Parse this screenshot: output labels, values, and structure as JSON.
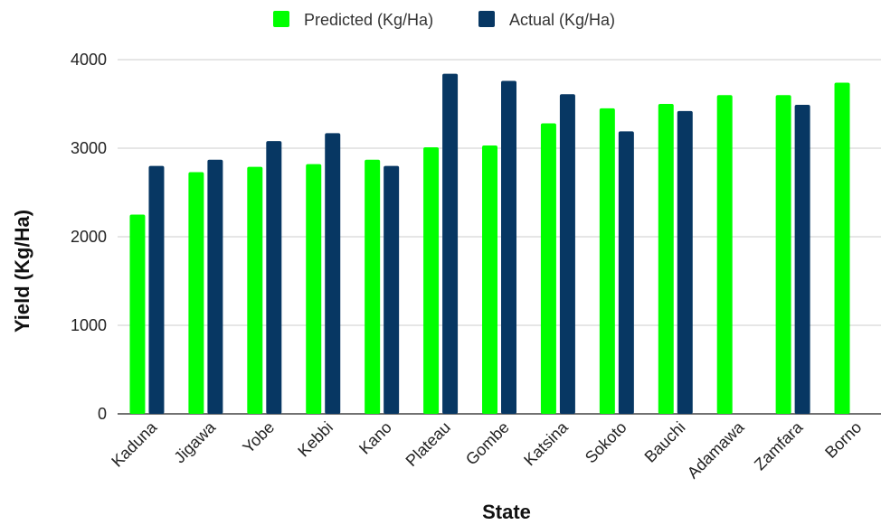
{
  "chart_data": {
    "type": "bar",
    "title": "",
    "xlabel": "State",
    "ylabel": "Yield (Kg/Ha)",
    "ylim": [
      0,
      4000
    ],
    "yticks": [
      "0",
      "1000",
      "2000",
      "3000",
      "4000"
    ],
    "grid": true,
    "legend_position": "top-center",
    "categories": [
      "Kaduna",
      "Jigawa",
      "Yobe",
      "Kebbi",
      "Kano",
      "Plateau",
      "Gombe",
      "Katsina",
      "Sokoto",
      "Bauchi",
      "Adamawa",
      "Zamfara",
      "Borno"
    ],
    "series": [
      {
        "name": "Predicted (Kg/Ha)",
        "color": "#00ff00",
        "values": [
          2250,
          2730,
          2790,
          2820,
          2870,
          3010,
          3030,
          3280,
          3450,
          3500,
          3600,
          3600,
          3740
        ]
      },
      {
        "name": "Actual (Kg/Ha)",
        "color": "#073763",
        "values": [
          2800,
          2870,
          3080,
          3170,
          2800,
          3840,
          3760,
          3610,
          3190,
          3420,
          null,
          3490,
          null
        ]
      }
    ]
  }
}
